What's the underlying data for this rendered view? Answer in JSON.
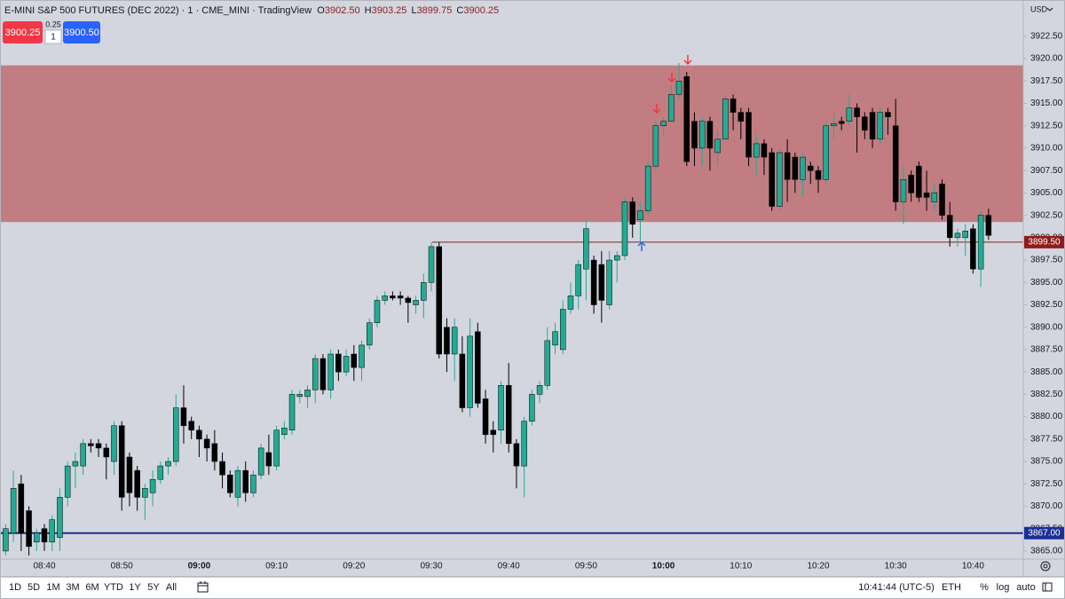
{
  "header": {
    "symbol": "E-MINI S&P 500 FUTURES (DEC 2022) · 1 · CME_MINI · TradingView",
    "o_label": "O",
    "open": "3902.50",
    "h_label": "H",
    "high": "3903.25",
    "l_label": "L",
    "low": "3899.75",
    "c_label": "C",
    "close": "3900.25"
  },
  "trade": {
    "sell": "3900.25",
    "spread": "0.25",
    "qty": "1",
    "buy": "3900.50"
  },
  "currency": "USD",
  "toolbar": {
    "ranges": [
      "1D",
      "5D",
      "1M",
      "3M",
      "6M",
      "YTD",
      "1Y",
      "5Y",
      "All"
    ],
    "time": "10:41:44 (UTC-5)",
    "session": "ETH",
    "percent": "%",
    "log": "log",
    "auto": "auto"
  },
  "chart_data": {
    "type": "candlestick",
    "categories": [
      null,
      null,
      null,
      null,
      null,
      "08:40",
      null,
      null,
      null,
      null,
      null,
      null,
      null,
      null,
      null,
      "08:50",
      null,
      null,
      null,
      null,
      null,
      null,
      null,
      null,
      null,
      "09:00",
      null,
      null,
      null,
      null,
      null,
      null,
      null,
      null,
      null,
      "09:10",
      null,
      null,
      null,
      null,
      null,
      null,
      null,
      null,
      null,
      "09:20",
      null,
      null,
      null,
      null,
      null,
      null,
      null,
      null,
      null,
      "09:30",
      null,
      null,
      null,
      null,
      null,
      null,
      null,
      null,
      null,
      "09:40",
      null,
      null,
      null,
      null,
      null,
      null,
      null,
      null,
      null,
      "09:50",
      null,
      null,
      null,
      null,
      null,
      null,
      null,
      null,
      null,
      "10:00",
      null,
      null,
      null,
      null,
      null,
      null,
      null,
      null,
      null,
      "10:10",
      null,
      null,
      null,
      null,
      null,
      null,
      null,
      null,
      null,
      "10:20",
      null,
      null,
      null,
      null,
      null,
      null,
      null,
      null,
      null,
      "10:30",
      null,
      null,
      null,
      null,
      null,
      null,
      null,
      null,
      null,
      "10:40",
      null,
      null
    ],
    "ohlc": [
      [
        3865,
        3868,
        3864.5,
        3867.5
      ],
      [
        3867,
        3874,
        3866,
        3872
      ],
      [
        3872.5,
        3873.5,
        3865,
        3867
      ],
      [
        3869.5,
        3870,
        3864.5,
        3865.5
      ],
      [
        3866,
        3867.5,
        3865,
        3867
      ],
      [
        3867.5,
        3868,
        3865,
        3866
      ],
      [
        3866,
        3869,
        3865,
        3868.5
      ],
      [
        3866.5,
        3872,
        3865,
        3871
      ],
      [
        3871,
        3875,
        3870,
        3874.5
      ],
      [
        3874.5,
        3876,
        3872,
        3875
      ],
      [
        3874.5,
        3877.5,
        3873.5,
        3877
      ],
      [
        3877,
        3877.5,
        3876,
        3876.75
      ],
      [
        3877,
        3877.5,
        3875.5,
        3876.5
      ],
      [
        3876.5,
        3877,
        3873,
        3875.5
      ],
      [
        3875,
        3879.5,
        3873.5,
        3879
      ],
      [
        3879,
        3879.5,
        3869.5,
        3871
      ],
      [
        3875.5,
        3876,
        3870,
        3871.5
      ],
      [
        3874,
        3874.5,
        3869.5,
        3871
      ],
      [
        3871,
        3872.5,
        3868.5,
        3872
      ],
      [
        3871.5,
        3874,
        3870,
        3873
      ],
      [
        3873,
        3875,
        3872.5,
        3874.5
      ],
      [
        3874.5,
        3875.5,
        3873.5,
        3875
      ],
      [
        3875,
        3882.5,
        3874.5,
        3881
      ],
      [
        3881,
        3883.5,
        3877,
        3879
      ],
      [
        3879.5,
        3880,
        3877.5,
        3878.5
      ],
      [
        3878.5,
        3879,
        3875.5,
        3877.5
      ],
      [
        3877.5,
        3878,
        3875,
        3876.5
      ],
      [
        3877,
        3878.5,
        3874,
        3875
      ],
      [
        3875,
        3876,
        3872,
        3873.5
      ],
      [
        3873.5,
        3874,
        3871,
        3871.5
      ],
      [
        3871,
        3874.5,
        3870,
        3874
      ],
      [
        3874,
        3875,
        3870.5,
        3871.5
      ],
      [
        3871.5,
        3874,
        3871,
        3873.5
      ],
      [
        3873.5,
        3877,
        3873,
        3876.5
      ],
      [
        3876,
        3878,
        3873.5,
        3874.5
      ],
      [
        3874.5,
        3879,
        3874,
        3878.5
      ],
      [
        3878,
        3879.5,
        3877.5,
        3878.75
      ],
      [
        3878.5,
        3883,
        3878,
        3882.5
      ],
      [
        3882.25,
        3883,
        3881.5,
        3882.5
      ],
      [
        3882.25,
        3883.5,
        3881,
        3883
      ],
      [
        3883,
        3887,
        3881.5,
        3886.5
      ],
      [
        3886.5,
        3887,
        3882.5,
        3883
      ],
      [
        3883,
        3887.5,
        3882,
        3887
      ],
      [
        3887,
        3887.5,
        3884,
        3885
      ],
      [
        3885,
        3887.5,
        3884.5,
        3886.75
      ],
      [
        3887,
        3888,
        3884,
        3885.5
      ],
      [
        3885.5,
        3888.5,
        3884,
        3888
      ],
      [
        3888,
        3891,
        3887.5,
        3890.5
      ],
      [
        3890.5,
        3893.5,
        3890,
        3893
      ],
      [
        3893,
        3894,
        3892.5,
        3893.5
      ],
      [
        3893.5,
        3894,
        3893,
        3893.25
      ],
      [
        3893.5,
        3894,
        3892.5,
        3893.25
      ],
      [
        3893.25,
        3893.5,
        3890.5,
        3892.75
      ],
      [
        3892.5,
        3893.5,
        3891.5,
        3893
      ],
      [
        3893,
        3896,
        3891,
        3895
      ],
      [
        3895,
        3899.5,
        3894,
        3899
      ],
      [
        3899,
        3899.5,
        3886.5,
        3887
      ],
      [
        3890,
        3891,
        3885,
        3887
      ],
      [
        3887,
        3891,
        3884,
        3890
      ],
      [
        3887,
        3889,
        3880.5,
        3881
      ],
      [
        3881,
        3891,
        3880,
        3889
      ],
      [
        3889.5,
        3890.5,
        3881,
        3881.5
      ],
      [
        3882,
        3883,
        3877,
        3878
      ],
      [
        3878.5,
        3879.5,
        3876,
        3878
      ],
      [
        3878.5,
        3884,
        3877,
        3883.5
      ],
      [
        3883.5,
        3886,
        3876,
        3877
      ],
      [
        3877,
        3877.5,
        3872,
        3874.5
      ],
      [
        3874.5,
        3880,
        3871,
        3879.5
      ],
      [
        3879.5,
        3883,
        3879,
        3882.5
      ],
      [
        3882.5,
        3884,
        3881.5,
        3883.5
      ],
      [
        3883.5,
        3890,
        3883,
        3888.5
      ],
      [
        3888,
        3890.5,
        3887,
        3889.5
      ],
      [
        3887.5,
        3893,
        3887,
        3892
      ],
      [
        3892,
        3895,
        3891.5,
        3893.5
      ],
      [
        3893.5,
        3897.5,
        3892,
        3897
      ],
      [
        3896.5,
        3902,
        3893,
        3901
      ],
      [
        3897.5,
        3898,
        3891.5,
        3892.5
      ],
      [
        3897,
        3898.5,
        3890.5,
        3893
      ],
      [
        3892.5,
        3898.5,
        3892,
        3897.5
      ],
      [
        3897.5,
        3898.5,
        3895,
        3898
      ],
      [
        3898,
        3904.5,
        3897.5,
        3904
      ],
      [
        3904,
        3904.5,
        3900,
        3901.5
      ],
      [
        3902,
        3904,
        3899.5,
        3903
      ],
      [
        3903,
        3908.5,
        3902.5,
        3908
      ],
      [
        3908,
        3913,
        3907.5,
        3912.5
      ],
      [
        3912.5,
        3913.5,
        3911.5,
        3913
      ],
      [
        3913,
        3917,
        3913,
        3916
      ],
      [
        3916,
        3919.5,
        3915.5,
        3917.5
      ],
      [
        3918,
        3918.5,
        3908,
        3908.5
      ],
      [
        3913,
        3914,
        3908,
        3910
      ],
      [
        3910,
        3913.5,
        3908,
        3913
      ],
      [
        3913,
        3913.5,
        3907.5,
        3910
      ],
      [
        3909.5,
        3912,
        3908,
        3911
      ],
      [
        3911,
        3916,
        3911,
        3915.5
      ],
      [
        3915.5,
        3916,
        3912,
        3914
      ],
      [
        3914,
        3914.5,
        3911,
        3913
      ],
      [
        3914,
        3914.5,
        3908,
        3909
      ],
      [
        3909,
        3911.5,
        3907,
        3910.5
      ],
      [
        3910.5,
        3911,
        3907,
        3909
      ],
      [
        3909.5,
        3910,
        3903,
        3903.5
      ],
      [
        3903.5,
        3910,
        3903,
        3909.5
      ],
      [
        3909.5,
        3911,
        3904,
        3906.5
      ],
      [
        3909,
        3909.5,
        3905,
        3906.5
      ],
      [
        3906.5,
        3909.5,
        3904.5,
        3909
      ],
      [
        3908,
        3908.5,
        3906,
        3907.5
      ],
      [
        3907.5,
        3908,
        3905,
        3906.5
      ],
      [
        3906.5,
        3913,
        3906,
        3912.5
      ],
      [
        3912.5,
        3914,
        3911,
        3912.75
      ],
      [
        3913,
        3913.5,
        3912,
        3912.75
      ],
      [
        3913,
        3916,
        3912.5,
        3914.5
      ],
      [
        3914.5,
        3915,
        3909.5,
        3913.5
      ],
      [
        3913.5,
        3914,
        3911,
        3912
      ],
      [
        3914,
        3914.5,
        3910,
        3911
      ],
      [
        3911,
        3914.5,
        3910.5,
        3914
      ],
      [
        3914,
        3914.5,
        3911.5,
        3913.5
      ],
      [
        3912.5,
        3915.5,
        3903,
        3904
      ],
      [
        3904,
        3908,
        3901.5,
        3906.5
      ],
      [
        3907,
        3907.5,
        3904,
        3905
      ],
      [
        3908,
        3908.5,
        3904,
        3904.5
      ],
      [
        3905,
        3907.5,
        3903,
        3904.5
      ],
      [
        3904,
        3906,
        3903,
        3905
      ],
      [
        3906,
        3906.5,
        3902,
        3902.5
      ],
      [
        3902.5,
        3904,
        3899,
        3900
      ],
      [
        3900,
        3901,
        3899,
        3900.5
      ],
      [
        3900,
        3901.5,
        3898,
        3900.75
      ],
      [
        3901,
        3901.5,
        3896,
        3896.5
      ],
      [
        3896.5,
        3903,
        3894.5,
        3902.5
      ],
      [
        3902.5,
        3903.25,
        3899.75,
        3900.25
      ]
    ],
    "up_color": "#22ab94",
    "down_color": "#000000",
    "ylim": [
      3864.1,
      3926.55
    ],
    "yticks": [
      {
        "value": 3865,
        "label": "3865.00"
      },
      {
        "value": 3867.5,
        "label": "3867.50"
      },
      {
        "value": 3870,
        "label": "3870.00"
      },
      {
        "value": 3872.5,
        "label": "3872.50"
      },
      {
        "value": 3875,
        "label": "3875.00"
      },
      {
        "value": 3877.5,
        "label": "3877.50"
      },
      {
        "value": 3880,
        "label": "3880.00"
      },
      {
        "value": 3882.5,
        "label": "3882.50"
      },
      {
        "value": 3885,
        "label": "3885.00"
      },
      {
        "value": 3887.5,
        "label": "3887.50"
      },
      {
        "value": 3890,
        "label": "3890.00"
      },
      {
        "value": 3892.5,
        "label": "3892.50"
      },
      {
        "value": 3895,
        "label": "3895.00"
      },
      {
        "value": 3897.5,
        "label": "3897.50"
      },
      {
        "value": 3900,
        "label": "3900.00"
      },
      {
        "value": 3902.5,
        "label": "3902.50"
      },
      {
        "value": 3905,
        "label": "3905.00"
      },
      {
        "value": 3907.5,
        "label": "3907.50"
      },
      {
        "value": 3910,
        "label": "3910.00"
      },
      {
        "value": 3912.5,
        "label": "3912.50"
      },
      {
        "value": 3915,
        "label": "3915.00"
      },
      {
        "value": 3917.5,
        "label": "3917.50"
      },
      {
        "value": 3920,
        "label": "3920.00"
      },
      {
        "value": 3922.5,
        "label": "3922.50"
      }
    ],
    "zone": {
      "from": 3901.75,
      "to": 3919.25,
      "color": "#c17d82"
    },
    "price_lines": [
      {
        "value": 3899.5,
        "label": "3899.50",
        "color": "#8e1c1c"
      },
      {
        "value": 3867,
        "label": "3867.00",
        "color": "#1b2f96"
      }
    ]
  }
}
